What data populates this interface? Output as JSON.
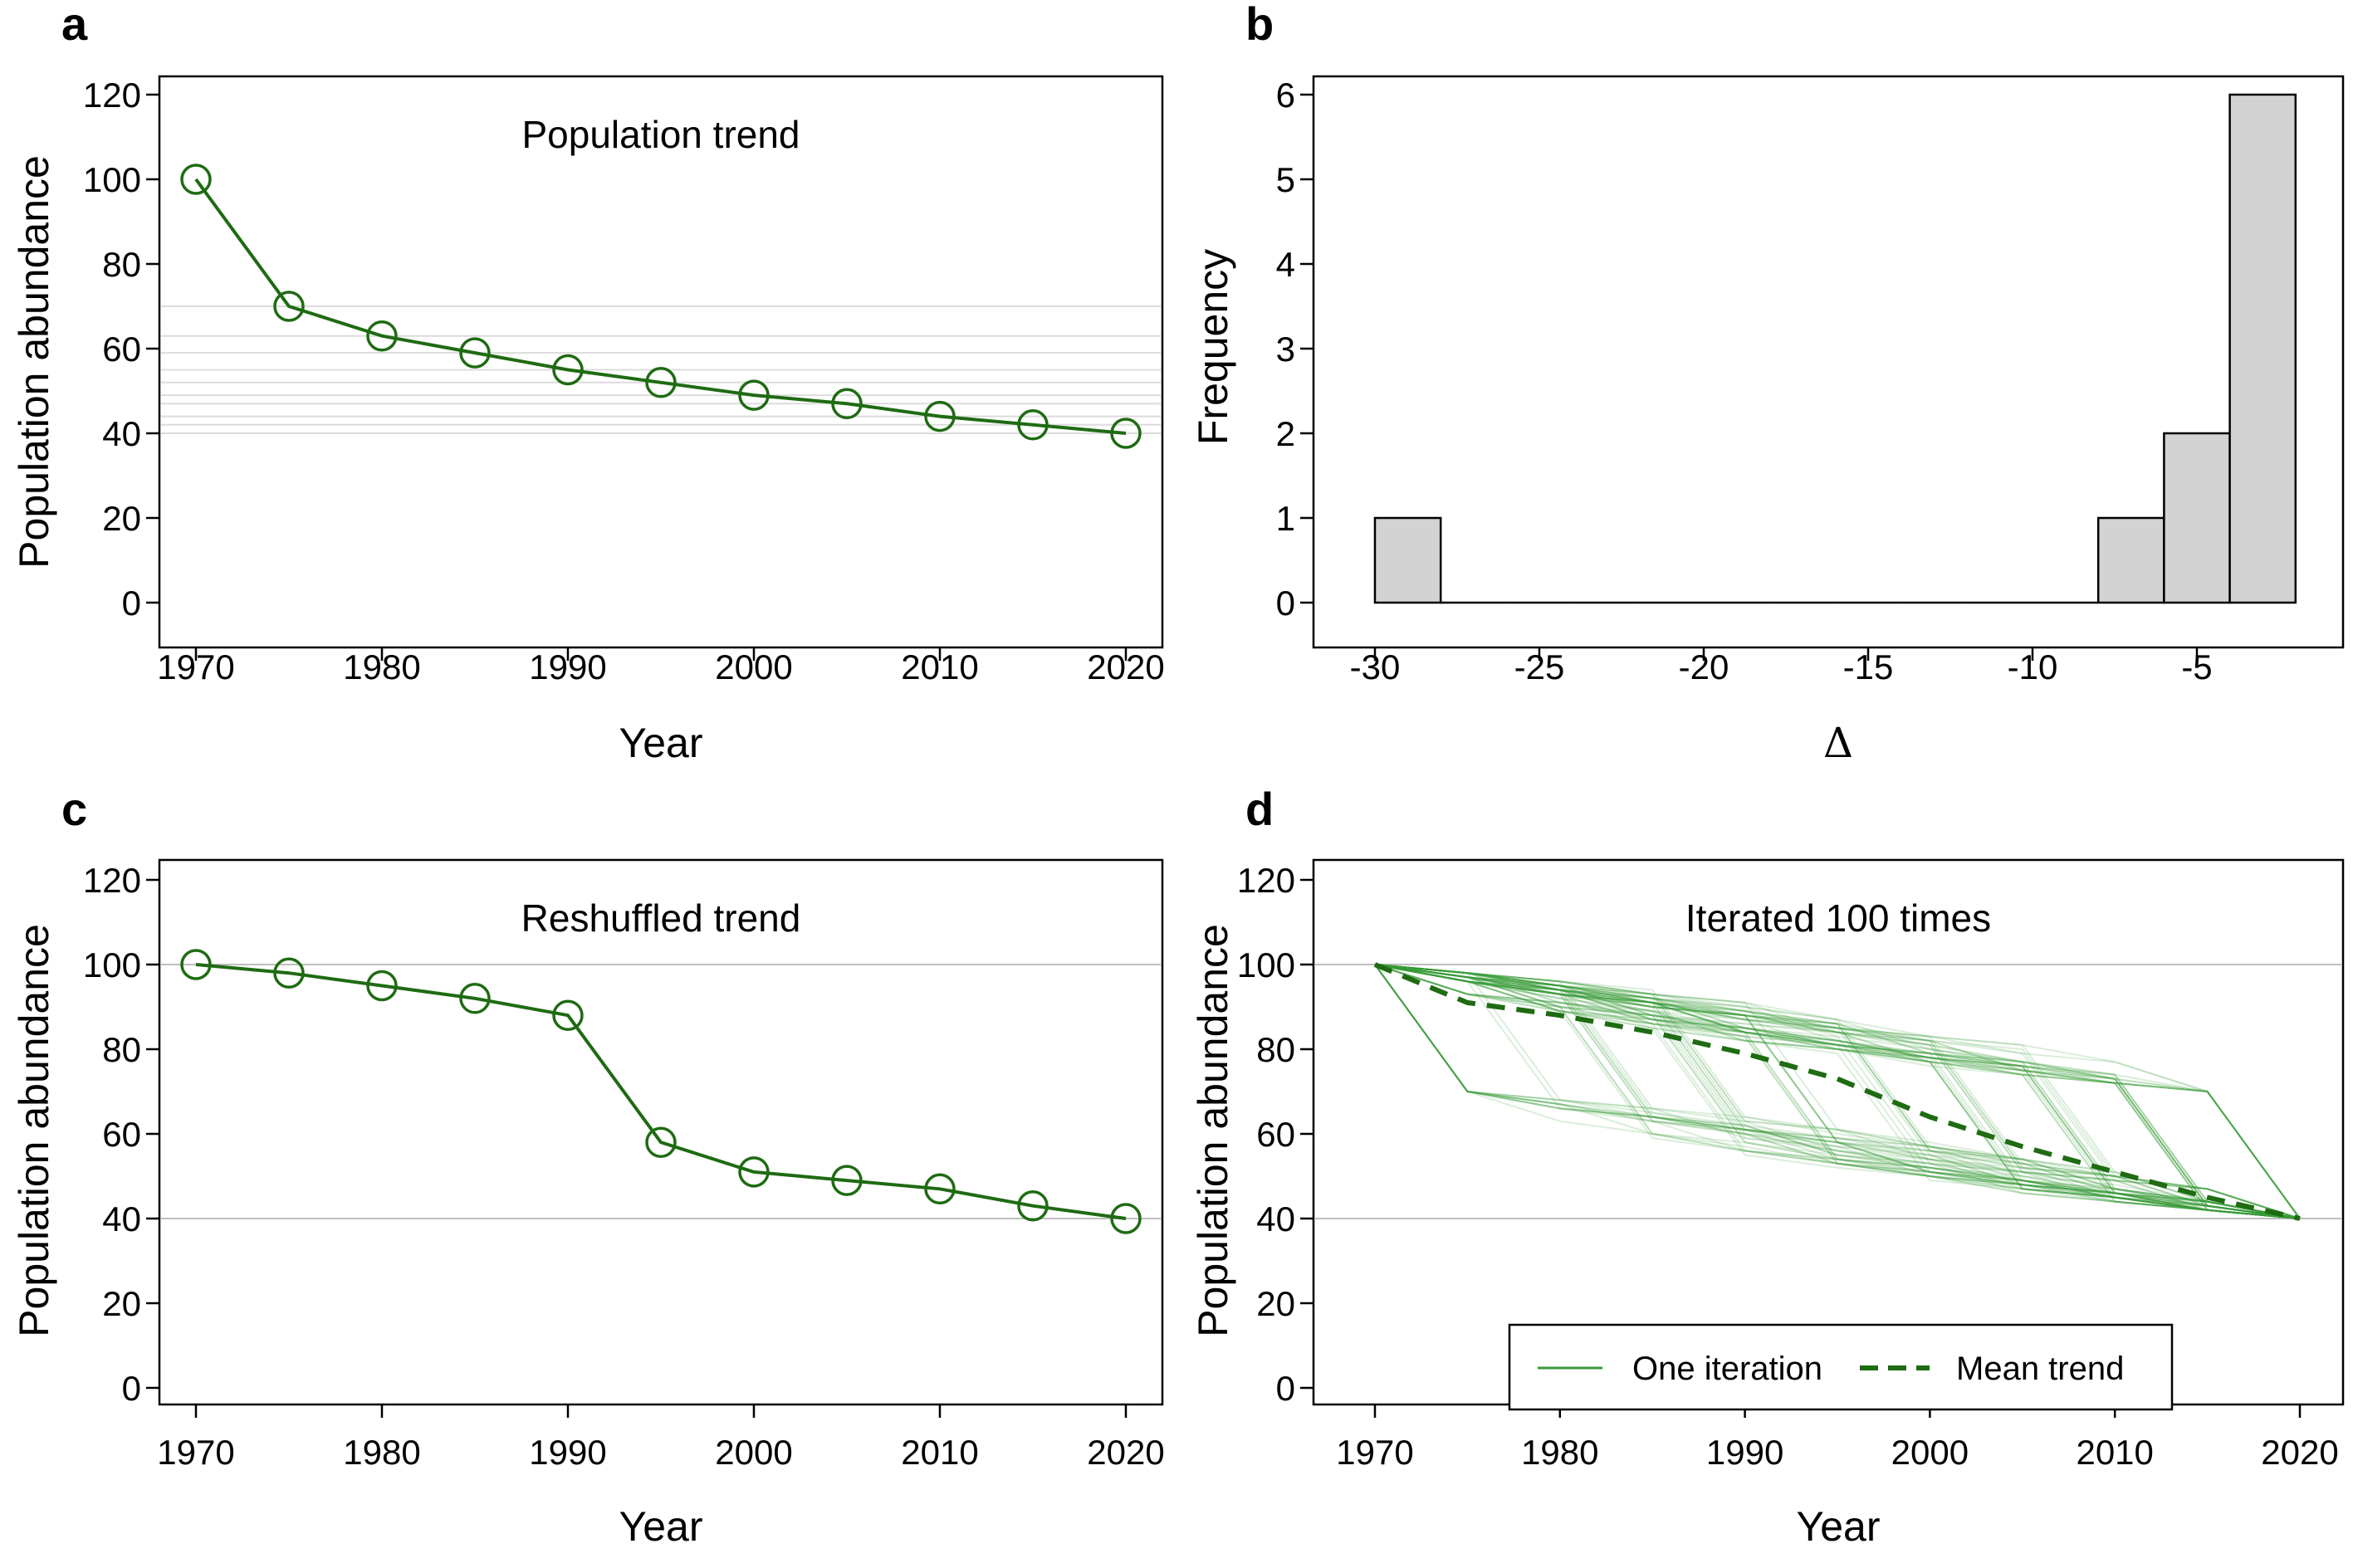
{
  "colors": {
    "line": "#1e6b12",
    "iteration": "#3a9a3a",
    "bar_fill": "#d3d3d3",
    "gridline": "#bdbdbd"
  },
  "chart_data": [
    {
      "panel": "a",
      "type": "line",
      "title": "Population trend",
      "xlabel": "Year",
      "ylabel": "Population abundance",
      "xlim": [
        1970,
        2020
      ],
      "ylim": [
        0,
        120
      ],
      "xticks": [
        1970,
        1980,
        1990,
        2000,
        2010,
        2020
      ],
      "yticks": [
        0,
        20,
        40,
        60,
        80,
        100,
        120
      ],
      "x": [
        1970,
        1975,
        1980,
        1985,
        1990,
        1995,
        2000,
        2005,
        2010,
        2015,
        2020
      ],
      "y": [
        100,
        70,
        63,
        59,
        55,
        52,
        49,
        47,
        44,
        42,
        40
      ],
      "markers": "open-circle",
      "reference_lines": "light horizontal lines at each point value"
    },
    {
      "panel": "b",
      "type": "bar",
      "xlabel": "Δ",
      "ylabel": "Frequency",
      "xticks": [
        -30,
        -25,
        -20,
        -15,
        -10,
        -5
      ],
      "yticks": [
        0,
        1,
        2,
        3,
        4,
        5,
        6
      ],
      "ylim": [
        0,
        6
      ],
      "bins": [
        {
          "from": -30,
          "to": -28,
          "count": 1
        },
        {
          "from": -28,
          "to": -26,
          "count": 0
        },
        {
          "from": -26,
          "to": -24,
          "count": 0
        },
        {
          "from": -24,
          "to": -22,
          "count": 0
        },
        {
          "from": -22,
          "to": -20,
          "count": 0
        },
        {
          "from": -20,
          "to": -18,
          "count": 0
        },
        {
          "from": -18,
          "to": -16,
          "count": 0
        },
        {
          "from": -16,
          "to": -14,
          "count": 0
        },
        {
          "from": -14,
          "to": -12,
          "count": 0
        },
        {
          "from": -12,
          "to": -10,
          "count": 0
        },
        {
          "from": -10,
          "to": -8,
          "count": 0
        },
        {
          "from": -8,
          "to": -6,
          "count": 1
        },
        {
          "from": -6,
          "to": -4,
          "count": 2
        },
        {
          "from": -4,
          "to": -2,
          "count": 6
        }
      ]
    },
    {
      "panel": "c",
      "type": "line",
      "title": "Reshuffled trend",
      "xlabel": "Year",
      "ylabel": "Population abundance",
      "xlim": [
        1970,
        2020
      ],
      "ylim": [
        0,
        120
      ],
      "xticks": [
        1970,
        1980,
        1990,
        2000,
        2010,
        2020
      ],
      "yticks": [
        0,
        20,
        40,
        60,
        80,
        100,
        120
      ],
      "x": [
        1970,
        1975,
        1980,
        1985,
        1990,
        1995,
        2000,
        2005,
        2010,
        2015,
        2020
      ],
      "y": [
        100,
        98,
        95,
        92,
        88,
        58,
        51,
        49,
        47,
        43,
        40
      ],
      "markers": "open-circle",
      "reference_lines": [
        40,
        100
      ]
    },
    {
      "panel": "d",
      "type": "line",
      "title": "Iterated 100 times",
      "xlabel": "Year",
      "ylabel": "Population abundance",
      "xlim": [
        1970,
        2020
      ],
      "ylim": [
        0,
        120
      ],
      "xticks": [
        1970,
        1980,
        1990,
        2000,
        2010,
        2020
      ],
      "yticks": [
        0,
        20,
        40,
        60,
        80,
        100,
        120
      ],
      "reference_lines": [
        40,
        100
      ],
      "iterations": 100,
      "start_value": 100,
      "end_value": 40,
      "step_decrements": [
        30,
        7,
        4,
        4,
        3,
        3,
        2,
        3,
        2,
        2
      ],
      "x": [
        1970,
        1975,
        1980,
        1985,
        1990,
        1995,
        2000,
        2005,
        2010,
        2015,
        2020
      ],
      "series": [
        {
          "name": "Mean trend",
          "style": "dashed",
          "values": [
            100,
            91,
            88,
            84,
            79,
            73,
            64,
            57,
            51,
            45,
            40
          ]
        }
      ],
      "legend": {
        "position": "bottom-right",
        "entries": [
          "One iteration",
          "Mean trend"
        ]
      }
    }
  ]
}
